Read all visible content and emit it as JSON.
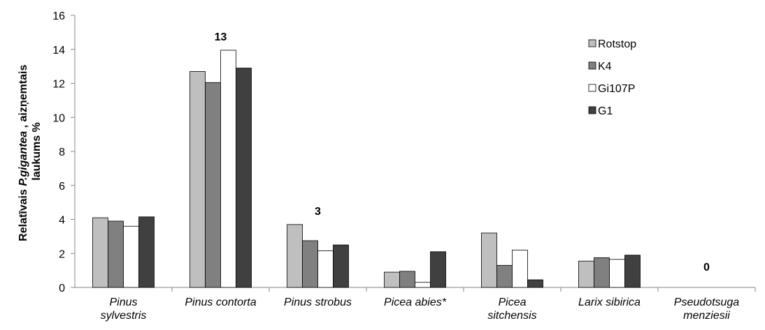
{
  "chart_data": {
    "type": "bar",
    "ylabel": {
      "before": "Relatīvais",
      "species": "P.gigantea",
      "after": " , aizņemtais",
      "line2": "laukums %"
    },
    "categories": [
      "Pinus\nsylvestris",
      "Pinus contorta",
      "Pinus strobus",
      "Picea abies*",
      "Picea\nsitchensis",
      "Larix sibirica",
      "Pseudotsuga\nmenziesii"
    ],
    "series": [
      {
        "name": "Rotstop",
        "color": "#bfbfbf",
        "values": [
          4.1,
          12.7,
          3.7,
          0.9,
          3.2,
          1.55,
          0
        ]
      },
      {
        "name": "K4",
        "color": "#808080",
        "values": [
          3.9,
          12.05,
          2.75,
          0.95,
          1.3,
          1.75,
          0
        ]
      },
      {
        "name": "Gi107P",
        "color": "#ffffff",
        "values": [
          3.6,
          13.95,
          2.15,
          0.3,
          2.2,
          1.65,
          0
        ]
      },
      {
        "name": "G1",
        "color": "#404040",
        "values": [
          4.15,
          12.9,
          2.5,
          2.1,
          0.45,
          1.9,
          0
        ]
      }
    ],
    "annotations": [
      {
        "text": "13",
        "x": 1
      },
      {
        "text": "3",
        "x": 2
      },
      {
        "text": "0",
        "x": 6
      }
    ],
    "ylim": [
      0,
      16
    ],
    "yticks": [
      0,
      2,
      4,
      6,
      8,
      10,
      12,
      14,
      16
    ],
    "legend": "upper right"
  }
}
